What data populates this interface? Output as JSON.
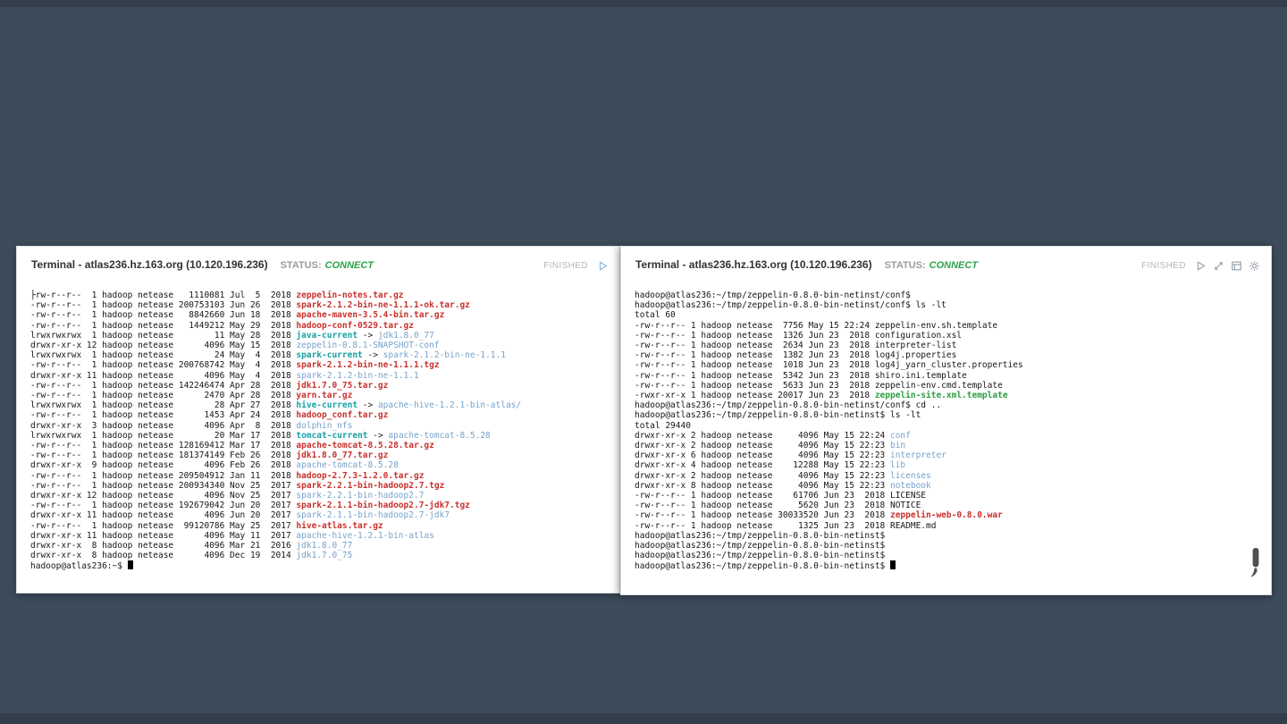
{
  "page": {
    "background": "#3e4b5b"
  },
  "colors": {
    "archive_red": "#c9302c",
    "directory_blue": "#76a2cb",
    "symlink_cyan": "#18a1a6",
    "executable_green": "#2b9e3f",
    "status_connect_green": "#2da44e",
    "finished_gray": "#b1b8bf"
  },
  "panels": [
    {
      "title": "Terminal - atlas236.hz.163.org (10.120.196.236)",
      "status_label": "STATUS:",
      "status_value": "CONNECT",
      "state_label": "FINISHED",
      "icons": [
        "play-icon"
      ],
      "lines": [
        {
          "s": [
            {
              "t": "├rw-r--r--  1 hadoop netease   1110081 Jul  5  2018 "
            },
            {
              "t": "zeppelin-notes.tar.gz",
              "c": "r"
            }
          ]
        },
        {
          "s": [
            {
              "t": "-rw-r--r--  1 hadoop netease 200753103 Jun 26  2018 "
            },
            {
              "t": "spark-2.1.2-bin-ne-1.1.1-ok.tar.gz",
              "c": "r"
            }
          ]
        },
        {
          "s": [
            {
              "t": "-rw-r--r--  1 hadoop netease   8842660 Jun 18  2018 "
            },
            {
              "t": "apache-maven-3.5.4-bin.tar.gz",
              "c": "r"
            }
          ]
        },
        {
          "s": [
            {
              "t": "-rw-r--r--  1 hadoop netease   1449212 May 29  2018 "
            },
            {
              "t": "hadoop-conf-0529.tar.gz",
              "c": "r"
            }
          ]
        },
        {
          "s": [
            {
              "t": "lrwxrwxrwx  1 hadoop netease        11 May 28  2018 "
            },
            {
              "t": "java-current",
              "c": "c"
            },
            {
              "t": " -> "
            },
            {
              "t": "jdk1.8.0_77",
              "c": "b"
            }
          ]
        },
        {
          "s": [
            {
              "t": "drwxr-xr-x 12 hadoop netease      4096 May 15  2018 "
            },
            {
              "t": "zeppelin-0.8.1-SNAPSHOT-conf",
              "c": "b"
            }
          ]
        },
        {
          "s": [
            {
              "t": "lrwxrwxrwx  1 hadoop netease        24 May  4  2018 "
            },
            {
              "t": "spark-current",
              "c": "c"
            },
            {
              "t": " -> "
            },
            {
              "t": "spark-2.1.2-bin-ne-1.1.1",
              "c": "b"
            }
          ]
        },
        {
          "s": [
            {
              "t": "-rw-r--r--  1 hadoop netease 200768742 May  4  2018 "
            },
            {
              "t": "spark-2.1.2-bin-ne-1.1.1.tgz",
              "c": "r"
            }
          ]
        },
        {
          "s": [
            {
              "t": "drwxr-xr-x 11 hadoop netease      4096 May  4  2018 "
            },
            {
              "t": "spark-2.1.2-bin-ne-1.1.1",
              "c": "b"
            }
          ]
        },
        {
          "s": [
            {
              "t": "-rw-r--r--  1 hadoop netease 142246474 Apr 28  2018 "
            },
            {
              "t": "jdk1.7.0_75.tar.gz",
              "c": "r"
            }
          ]
        },
        {
          "s": [
            {
              "t": "-rw-r--r--  1 hadoop netease      2470 Apr 28  2018 "
            },
            {
              "t": "yarn.tar.gz",
              "c": "r"
            }
          ]
        },
        {
          "s": [
            {
              "t": "lrwxrwxrwx  1 hadoop netease        28 Apr 27  2018 "
            },
            {
              "t": "hive-current",
              "c": "c"
            },
            {
              "t": " -> "
            },
            {
              "t": "apache-hive-1.2.1-bin-atlas/",
              "c": "b"
            }
          ]
        },
        {
          "s": [
            {
              "t": "-rw-r--r--  1 hadoop netease      1453 Apr 24  2018 "
            },
            {
              "t": "hadoop_conf.tar.gz",
              "c": "r"
            }
          ]
        },
        {
          "s": [
            {
              "t": "drwxr-xr-x  3 hadoop netease      4096 Apr  8  2018 "
            },
            {
              "t": "dolphin_nfs",
              "c": "b"
            }
          ]
        },
        {
          "s": [
            {
              "t": "lrwxrwxrwx  1 hadoop netease        20 Mar 17  2018 "
            },
            {
              "t": "tomcat-current",
              "c": "c"
            },
            {
              "t": " -> "
            },
            {
              "t": "apache-tomcat-8.5.28",
              "c": "b"
            }
          ]
        },
        {
          "s": [
            {
              "t": "-rw-r--r--  1 hadoop netease 128169412 Mar 17  2018 "
            },
            {
              "t": "apache-tomcat-8.5.28.tar.gz",
              "c": "r"
            }
          ]
        },
        {
          "s": [
            {
              "t": "-rw-r--r--  1 hadoop netease 181374149 Feb 26  2018 "
            },
            {
              "t": "jdk1.8.0_77.tar.gz",
              "c": "r"
            }
          ]
        },
        {
          "s": [
            {
              "t": "drwxr-xr-x  9 hadoop netease      4096 Feb 26  2018 "
            },
            {
              "t": "apache-tomcat-8.5.28",
              "c": "b"
            }
          ]
        },
        {
          "s": [
            {
              "t": "-rw-r--r--  1 hadoop netease 209504912 Jan 11  2018 "
            },
            {
              "t": "hadoop-2.7.3-1.2.0.tar.gz",
              "c": "r"
            }
          ]
        },
        {
          "s": [
            {
              "t": "-rw-r--r--  1 hadoop netease 200934340 Nov 25  2017 "
            },
            {
              "t": "spark-2.2.1-bin-hadoop2.7.tgz",
              "c": "r"
            }
          ]
        },
        {
          "s": [
            {
              "t": "drwxr-xr-x 12 hadoop netease      4096 Nov 25  2017 "
            },
            {
              "t": "spark-2.2.1-bin-hadoop2.7",
              "c": "b"
            }
          ]
        },
        {
          "s": [
            {
              "t": "-rw-r--r--  1 hadoop netease 192679042 Jun 20  2017 "
            },
            {
              "t": "spark-2.1.1-bin-hadoop2.7-jdk7.tgz",
              "c": "r"
            }
          ]
        },
        {
          "s": [
            {
              "t": "drwxr-xr-x 11 hadoop netease      4096 Jun 20  2017 "
            },
            {
              "t": "spark-2.1.1-bin-hadoop2.7-jdk7",
              "c": "b"
            }
          ]
        },
        {
          "s": [
            {
              "t": "-rw-r--r--  1 hadoop netease  99120786 May 25  2017 "
            },
            {
              "t": "hive-atlas.tar.gz",
              "c": "r"
            }
          ]
        },
        {
          "s": [
            {
              "t": "drwxr-xr-x 11 hadoop netease      4096 May 11  2017 "
            },
            {
              "t": "apache-hive-1.2.1-bin-atlas",
              "c": "b"
            }
          ]
        },
        {
          "s": [
            {
              "t": "drwxr-xr-x  8 hadoop netease      4096 Mar 21  2016 "
            },
            {
              "t": "jdk1.8.0_77",
              "c": "b"
            }
          ]
        },
        {
          "s": [
            {
              "t": "drwxr-xr-x  8 hadoop netease      4096 Dec 19  2014 "
            },
            {
              "t": "jdk1.7.0_75",
              "c": "b"
            }
          ]
        },
        {
          "s": [
            {
              "t": "hadoop@atlas236:~$ "
            }
          ],
          "cursor": true
        }
      ]
    },
    {
      "title": "Terminal - atlas236.hz.163.org (10.120.196.236)",
      "status_label": "STATUS:",
      "status_value": "CONNECT",
      "state_label": "FINISHED",
      "icons": [
        "play-icon",
        "expand-icon",
        "layout-icon",
        "gear-icon"
      ],
      "lines": [
        {
          "s": [
            {
              "t": "hadoop@atlas236:~/tmp/zeppelin-0.8.0-bin-netinst/conf$"
            }
          ]
        },
        {
          "s": [
            {
              "t": "hadoop@atlas236:~/tmp/zeppelin-0.8.0-bin-netinst/conf$ ls -lt"
            }
          ]
        },
        {
          "s": [
            {
              "t": "total 60"
            }
          ]
        },
        {
          "s": [
            {
              "t": "-rw-r--r-- 1 hadoop netease  7756 May 15 22:24 zeppelin-env.sh.template"
            }
          ]
        },
        {
          "s": [
            {
              "t": "-rw-r--r-- 1 hadoop netease  1326 Jun 23  2018 configuration.xsl"
            }
          ]
        },
        {
          "s": [
            {
              "t": "-rw-r--r-- 1 hadoop netease  2634 Jun 23  2018 interpreter-list"
            }
          ]
        },
        {
          "s": [
            {
              "t": "-rw-r--r-- 1 hadoop netease  1382 Jun 23  2018 log4j.properties"
            }
          ]
        },
        {
          "s": [
            {
              "t": "-rw-r--r-- 1 hadoop netease  1018 Jun 23  2018 log4j_yarn_cluster.properties"
            }
          ]
        },
        {
          "s": [
            {
              "t": "-rw-r--r-- 1 hadoop netease  5342 Jun 23  2018 shiro.ini.template"
            }
          ]
        },
        {
          "s": [
            {
              "t": "-rw-r--r-- 1 hadoop netease  5633 Jun 23  2018 zeppelin-env.cmd.template"
            }
          ]
        },
        {
          "s": [
            {
              "t": "-rwxr-xr-x 1 hadoop netease 20017 Jun 23  2018 "
            },
            {
              "t": "zeppelin-site.xml.template",
              "c": "g"
            }
          ]
        },
        {
          "s": [
            {
              "t": "hadoop@atlas236:~/tmp/zeppelin-0.8.0-bin-netinst/conf$ cd .."
            }
          ]
        },
        {
          "s": [
            {
              "t": "hadoop@atlas236:~/tmp/zeppelin-0.8.0-bin-netinst$ ls -lt"
            }
          ]
        },
        {
          "s": [
            {
              "t": "total 29440"
            }
          ]
        },
        {
          "s": [
            {
              "t": "drwxr-xr-x 2 hadoop netease     4096 May 15 22:24 "
            },
            {
              "t": "conf",
              "c": "b"
            }
          ]
        },
        {
          "s": [
            {
              "t": "drwxr-xr-x 2 hadoop netease     4096 May 15 22:23 "
            },
            {
              "t": "bin",
              "c": "b"
            }
          ]
        },
        {
          "s": [
            {
              "t": "drwxr-xr-x 6 hadoop netease     4096 May 15 22:23 "
            },
            {
              "t": "interpreter",
              "c": "b"
            }
          ]
        },
        {
          "s": [
            {
              "t": "drwxr-xr-x 4 hadoop netease    12288 May 15 22:23 "
            },
            {
              "t": "lib",
              "c": "b"
            }
          ]
        },
        {
          "s": [
            {
              "t": "drwxr-xr-x 2 hadoop netease     4096 May 15 22:23 "
            },
            {
              "t": "licenses",
              "c": "b"
            }
          ]
        },
        {
          "s": [
            {
              "t": "drwxr-xr-x 8 hadoop netease     4096 May 15 22:23 "
            },
            {
              "t": "notebook",
              "c": "b"
            }
          ]
        },
        {
          "s": [
            {
              "t": "-rw-r--r-- 1 hadoop netease    61706 Jun 23  2018 LICENSE"
            }
          ]
        },
        {
          "s": [
            {
              "t": "-rw-r--r-- 1 hadoop netease     5620 Jun 23  2018 NOTICE"
            }
          ]
        },
        {
          "s": [
            {
              "t": "-rw-r--r-- 1 hadoop netease 30033520 Jun 23  2018 "
            },
            {
              "t": "zeppelin-web-0.8.0.war",
              "c": "r"
            }
          ]
        },
        {
          "s": [
            {
              "t": "-rw-r--r-- 1 hadoop netease     1325 Jun 23  2018 README.md"
            }
          ]
        },
        {
          "s": [
            {
              "t": "hadoop@atlas236:~/tmp/zeppelin-0.8.0-bin-netinst$"
            }
          ]
        },
        {
          "s": [
            {
              "t": "hadoop@atlas236:~/tmp/zeppelin-0.8.0-bin-netinst$"
            }
          ]
        },
        {
          "s": [
            {
              "t": "hadoop@atlas236:~/tmp/zeppelin-0.8.0-bin-netinst$"
            }
          ]
        },
        {
          "s": [
            {
              "t": "hadoop@atlas236:~/tmp/zeppelin-0.8.0-bin-netinst$ "
            }
          ],
          "cursor": true
        }
      ]
    }
  ]
}
